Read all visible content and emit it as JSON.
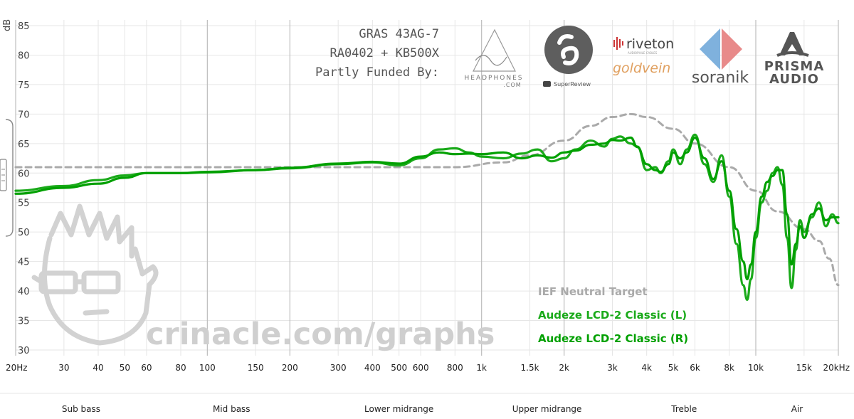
{
  "chart_data": {
    "type": "line",
    "x_scale": "log",
    "xlim": [
      20,
      20000
    ],
    "ylim": [
      30,
      85
    ],
    "y_unit": "dB",
    "y_ticks": [
      85,
      80,
      75,
      70,
      65,
      60,
      55,
      50,
      45,
      40,
      35,
      30
    ],
    "x_ticks": [
      {
        "v": 20,
        "label": "20Hz"
      },
      {
        "v": 30,
        "label": "30"
      },
      {
        "v": 40,
        "label": "40"
      },
      {
        "v": 50,
        "label": "50"
      },
      {
        "v": 60,
        "label": "60"
      },
      {
        "v": 80,
        "label": "80"
      },
      {
        "v": 100,
        "label": "100"
      },
      {
        "v": 150,
        "label": "150"
      },
      {
        "v": 200,
        "label": "200"
      },
      {
        "v": 300,
        "label": "300"
      },
      {
        "v": 400,
        "label": "400"
      },
      {
        "v": 500,
        "label": "500"
      },
      {
        "v": 600,
        "label": "600"
      },
      {
        "v": 800,
        "label": "800"
      },
      {
        "v": 1000,
        "label": "1k"
      },
      {
        "v": 1500,
        "label": "1.5k"
      },
      {
        "v": 2000,
        "label": "2k"
      },
      {
        "v": 3000,
        "label": "3k"
      },
      {
        "v": 4000,
        "label": "4k"
      },
      {
        "v": 5000,
        "label": "5k"
      },
      {
        "v": 6000,
        "label": "6k"
      },
      {
        "v": 8000,
        "label": "8k"
      },
      {
        "v": 10000,
        "label": "10k"
      },
      {
        "v": 15000,
        "label": "15k"
      },
      {
        "v": 20000,
        "label": "20kHz"
      }
    ],
    "bands": [
      {
        "label": "Sub bass",
        "from": 20,
        "to": 60
      },
      {
        "label": "Mid bass",
        "from": 60,
        "to": 250
      },
      {
        "label": "Lower midrange",
        "from": 250,
        "to": 1000
      },
      {
        "label": "Upper midrange",
        "from": 1000,
        "to": 3000
      },
      {
        "label": "Treble",
        "from": 3000,
        "to": 10000
      },
      {
        "label": "Air",
        "from": 10000,
        "to": 20000
      }
    ],
    "rig_text": [
      "GRAS 43AG-7",
      "RA0402 + KB500X",
      "Partly Funded By:"
    ],
    "watermark": "crinacle.com/graphs",
    "series": [
      {
        "name": "IEF Neutral Target",
        "color": "#aaaaaa",
        "dash": true,
        "x": [
          20,
          100,
          300,
          800,
          1200,
          1500,
          2000,
          2500,
          3000,
          3500,
          4000,
          5000,
          6000,
          8000,
          10000,
          12000,
          15000,
          17000,
          18500,
          20000
        ],
        "y": [
          61,
          61,
          61,
          61,
          61.8,
          63,
          65.5,
          68,
          69.5,
          70,
          69.5,
          67.5,
          65,
          61,
          57,
          53.5,
          50.5,
          48.5,
          45.5,
          41
        ]
      },
      {
        "name": "Audeze LCD-2 Classic (L)",
        "color": "#1aaa1a",
        "dash": false,
        "x": [
          20,
          30,
          40,
          50,
          60,
          80,
          100,
          150,
          200,
          300,
          400,
          500,
          600,
          700,
          800,
          900,
          1000,
          1200,
          1400,
          1600,
          1800,
          2000,
          2200,
          2500,
          2800,
          3000,
          3200,
          3500,
          3700,
          4000,
          4300,
          4500,
          4800,
          5000,
          5300,
          5600,
          6000,
          6500,
          7000,
          7500,
          8000,
          8500,
          9000,
          9300,
          9600,
          10000,
          10500,
          11000,
          11500,
          12000,
          12500,
          13000,
          13500,
          14000,
          14500,
          15000,
          16000,
          17000,
          18000,
          19000,
          20000
        ],
        "y": [
          57,
          57.8,
          58.8,
          59.6,
          60,
          60,
          60.1,
          60.5,
          60.8,
          61.5,
          61.8,
          61.3,
          62.5,
          64,
          64.2,
          63.5,
          62.8,
          62.5,
          63.3,
          64,
          62,
          62.5,
          64,
          65.5,
          64.5,
          65.8,
          66.2,
          65,
          64.5,
          60.5,
          61,
          60,
          62,
          64,
          61.5,
          64,
          66.5,
          61.5,
          58.5,
          63,
          56,
          48,
          41,
          38.5,
          42,
          49,
          55,
          57,
          60,
          61,
          58,
          49,
          40.5,
          47,
          52,
          50,
          52.5,
          55,
          51,
          53,
          51.5
        ]
      },
      {
        "name": "Audeze LCD-2 Classic (R)",
        "color": "#00a000",
        "dash": false,
        "x": [
          20,
          30,
          40,
          50,
          60,
          80,
          100,
          150,
          200,
          300,
          400,
          500,
          600,
          700,
          800,
          900,
          1000,
          1200,
          1400,
          1600,
          1800,
          2000,
          2200,
          2500,
          2800,
          3000,
          3200,
          3500,
          3700,
          4000,
          4300,
          4500,
          4800,
          5000,
          5300,
          5600,
          6000,
          6500,
          7000,
          7500,
          8000,
          8500,
          9000,
          9300,
          9600,
          10000,
          10500,
          11000,
          11500,
          12000,
          12500,
          13000,
          13500,
          14000,
          14500,
          15000,
          16000,
          17000,
          18000,
          19000,
          20000
        ],
        "y": [
          56.5,
          57.5,
          58.2,
          59.2,
          60,
          60,
          60.2,
          60.5,
          60.9,
          61.6,
          61.9,
          61.6,
          62.8,
          63.5,
          63.2,
          63.3,
          63.2,
          63.5,
          62.5,
          63,
          62.6,
          63.5,
          63.8,
          64.8,
          65,
          65.6,
          65.5,
          66,
          64.4,
          61.5,
          60.5,
          60.2,
          61.5,
          63.5,
          62.5,
          63.5,
          66,
          62.5,
          59,
          62,
          57,
          50.5,
          45,
          42,
          44.5,
          50,
          56,
          58.5,
          59.5,
          60.5,
          60.5,
          53,
          44.5,
          48,
          51,
          49,
          53,
          54,
          52,
          52.5,
          52.5
        ]
      }
    ]
  },
  "sponsors": {
    "headphones_top": "HEADPHONES",
    "headphones_bottom": ".COM",
    "superreview": "SuperReview",
    "riveton": "riveton",
    "riveton_sub": "AUDIOPHILE CABLES",
    "goldvein": "goldvein",
    "soranik": "soranik",
    "prisma_1": "PRISMA",
    "prisma_2": "AUDIO"
  }
}
